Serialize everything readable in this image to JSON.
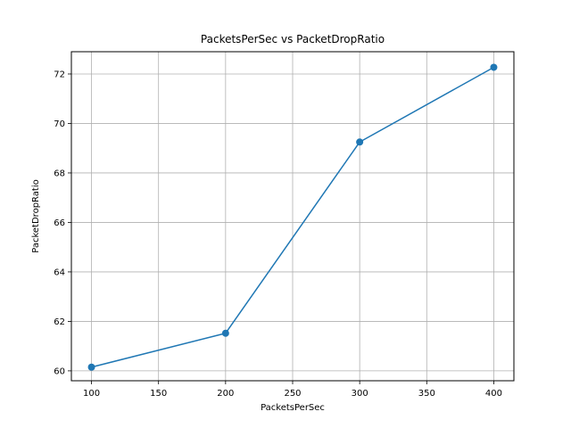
{
  "chart_data": {
    "type": "line",
    "title": "PacketsPerSec vs PacketDropRatio",
    "xlabel": "PacketsPerSec",
    "ylabel": "PacketDropRatio",
    "x": [
      100,
      200,
      300,
      400
    ],
    "series": [
      {
        "values": [
          60.15,
          61.52,
          69.25,
          72.27
        ],
        "color": "#1f77b4",
        "marker": "circle"
      }
    ],
    "xlim": [
      85,
      415
    ],
    "ylim": [
      59.6,
      72.9
    ],
    "xticks": [
      100,
      150,
      200,
      250,
      300,
      350,
      400
    ],
    "yticks": [
      60,
      62,
      64,
      66,
      68,
      70,
      72
    ],
    "grid": true
  }
}
